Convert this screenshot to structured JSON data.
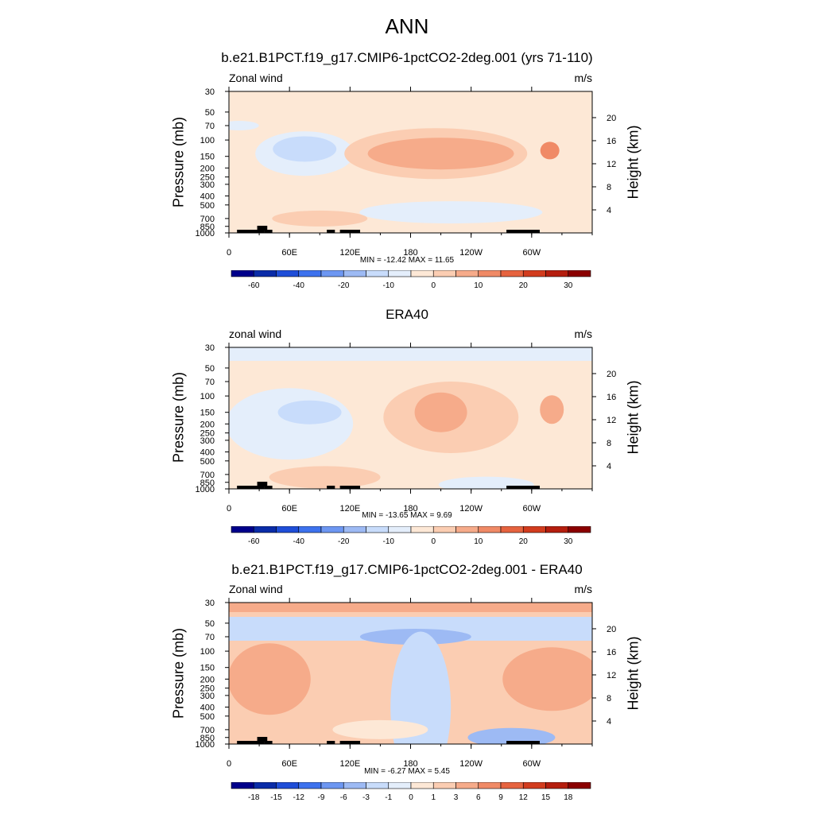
{
  "title": "ANN",
  "colors": {
    "base_palette": [
      "#00008b",
      "#0a2ca8",
      "#1f4ed8",
      "#3d72ee",
      "#6d97f2",
      "#9dbaf4",
      "#c8dcfb",
      "#e4eefb",
      "#fde8d6",
      "#fbcdb2",
      "#f6ab8a",
      "#f08a66",
      "#e6633f",
      "#d23c1e",
      "#b51e0e",
      "#8b0000"
    ]
  },
  "panels": [
    {
      "title": "b.e21.B1PCT.f19_g17.CMIP6-1pctCO2-2deg.001 (yrs 71-110)",
      "var_label": "Zonal wind",
      "units": "m/s",
      "stats": "MIN = -12.42  MAX =  11.65",
      "colorbar_ticks": [
        "-60",
        "-40",
        "-20",
        "-10",
        "0",
        "10",
        "20",
        "30"
      ],
      "chart_data": {
        "type": "heatmap",
        "x_ticks": [
          "0",
          "60E",
          "120E",
          "180",
          "120W",
          "60W"
        ],
        "y_ticks_left": [
          "30",
          "50",
          "70",
          "100",
          "150",
          "200",
          "250",
          "300",
          "400",
          "500",
          "700",
          "850",
          "1000"
        ],
        "y_ticks_right": [
          "20",
          "16",
          "12",
          "8",
          "4"
        ],
        "ylabel": "Pressure (mb)",
        "ylabel_right": "Height (km)",
        "contour_levels": [
          -60,
          -50,
          -40,
          -30,
          -20,
          -15,
          -10,
          -5,
          0,
          5,
          10,
          15,
          20,
          25,
          30,
          35
        ],
        "min": -12.42,
        "max": 11.65,
        "features": [
          {
            "center_lon": 75,
            "center_p": 130,
            "value": -7.5
          },
          {
            "center_lon": 215,
            "center_p": 140,
            "value": 7.5
          },
          {
            "center_lon": 320,
            "center_p": 150,
            "value": 12.5
          },
          {
            "center_lon": 225,
            "center_p": 650,
            "value": -2.5
          },
          {
            "center_lon": 100,
            "center_p": 700,
            "value": 2.5
          }
        ]
      }
    },
    {
      "title": "ERA40",
      "var_label": "zonal wind",
      "units": "m/s",
      "stats": "MIN = -13.65  MAX =   9.69",
      "colorbar_ticks": [
        "-60",
        "-40",
        "-20",
        "-10",
        "0",
        "10",
        "20",
        "30"
      ],
      "chart_data": {
        "type": "heatmap",
        "x_ticks": [
          "0",
          "60E",
          "120E",
          "180",
          "120W",
          "60W"
        ],
        "y_ticks_left": [
          "30",
          "50",
          "70",
          "100",
          "150",
          "200",
          "250",
          "300",
          "400",
          "500",
          "700",
          "850",
          "1000"
        ],
        "y_ticks_right": [
          "20",
          "16",
          "12",
          "8",
          "4"
        ],
        "ylabel": "Pressure (mb)",
        "ylabel_right": "Height (km)",
        "contour_levels": [
          -60,
          -50,
          -40,
          -30,
          -20,
          -15,
          -10,
          -5,
          0,
          5,
          10,
          15,
          20,
          25,
          30,
          35
        ],
        "min": -13.65,
        "max": 9.69,
        "features": [
          {
            "center_lon": 80,
            "center_p": 150,
            "value": -7.5
          },
          {
            "center_lon": 215,
            "center_p": 150,
            "value": 7.5
          },
          {
            "center_lon": 320,
            "center_p": 140,
            "value": 7.5
          },
          {
            "center_lon": 0,
            "center_p": 35,
            "value": -2.5
          }
        ]
      }
    },
    {
      "title": "b.e21.B1PCT.f19_g17.CMIP6-1pctCO2-2deg.001 - ERA40",
      "var_label": "Zonal wind",
      "units": "m/s",
      "stats": "MIN = -6.27  MAX =  5.45",
      "colorbar_ticks": [
        "-18",
        "-15",
        "-12",
        "-9",
        "-6",
        "-3",
        "-1",
        "0",
        "1",
        "3",
        "6",
        "9",
        "12",
        "15",
        "18"
      ],
      "chart_data": {
        "type": "heatmap",
        "x_ticks": [
          "0",
          "60E",
          "120E",
          "180",
          "120W",
          "60W"
        ],
        "y_ticks_left": [
          "30",
          "50",
          "70",
          "100",
          "150",
          "200",
          "250",
          "300",
          "400",
          "500",
          "700",
          "850",
          "1000"
        ],
        "y_ticks_right": [
          "20",
          "16",
          "12",
          "8",
          "4"
        ],
        "ylabel": "Pressure (mb)",
        "ylabel_right": "Height (km)",
        "contour_levels": [
          -18,
          -15,
          -12,
          -9,
          -6,
          -3,
          -1,
          0,
          1,
          3,
          6,
          9,
          12,
          15,
          18
        ],
        "min": -6.27,
        "max": 5.45,
        "features": [
          {
            "center_lon": 0,
            "center_p": 35,
            "value": 2
          },
          {
            "center_lon": 180,
            "center_p": 60,
            "value": -2
          },
          {
            "center_lon": 40,
            "center_p": 200,
            "value": 2
          },
          {
            "center_lon": 320,
            "center_p": 180,
            "value": 2
          },
          {
            "center_lon": 200,
            "center_p": 300,
            "value": -2
          },
          {
            "center_lon": 270,
            "center_p": 800,
            "value": -2
          }
        ]
      }
    }
  ]
}
